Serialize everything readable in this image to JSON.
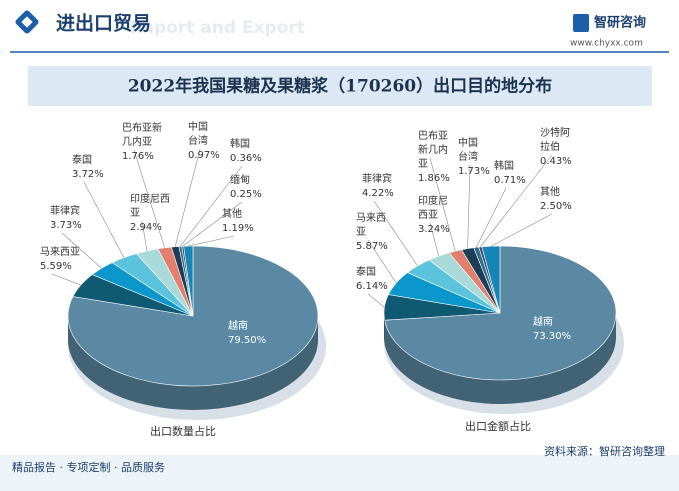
{
  "header": {
    "title": "进出口贸易",
    "subtitle": "Import and Export",
    "brand": "智研咨询",
    "url": "www.chyxx.com"
  },
  "title": "2022年我国果糖及果糖浆（170260）出口目的地分布",
  "chart_data": [
    {
      "type": "pie",
      "title": "出口数量占比",
      "categories": [
        "越南",
        "马来西亚",
        "菲律宾",
        "泰国",
        "印度尼西亚",
        "巴布亚新几内亚",
        "中国台湾",
        "韩国",
        "缅甸",
        "其他"
      ],
      "values": [
        79.5,
        5.59,
        3.73,
        3.72,
        2.94,
        1.76,
        0.97,
        0.36,
        0.25,
        1.19
      ],
      "value_labels": [
        "79.50%",
        "5.59%",
        "3.73%",
        "3.72%",
        "2.94%",
        "1.76%",
        "0.97%",
        "0.36%",
        "0.25%",
        "1.19%"
      ],
      "colors": [
        "#5b88a3",
        "#0f5a72",
        "#0b97cc",
        "#5cc3dd",
        "#a9d9d8",
        "#e2806f",
        "#1e3d57",
        "#2c6f8f",
        "#3b4f66",
        "#1685b8"
      ]
    },
    {
      "type": "pie",
      "title": "出口金额占比",
      "categories": [
        "越南",
        "泰国",
        "马来西亚",
        "菲律宾",
        "印度尼西亚",
        "巴布亚新几内亚",
        "中国台湾",
        "韩国",
        "沙特阿拉伯",
        "其他"
      ],
      "values": [
        73.3,
        6.14,
        5.87,
        4.22,
        3.24,
        1.86,
        1.73,
        0.71,
        0.43,
        2.5
      ],
      "value_labels": [
        "73.30%",
        "6.14%",
        "5.87%",
        "4.22%",
        "3.24%",
        "1.86%",
        "1.73%",
        "0.71%",
        "0.43%",
        "2.50%"
      ],
      "colors": [
        "#5b88a3",
        "#0f5a72",
        "#0b97cc",
        "#5cc3dd",
        "#a9d9d8",
        "#e2806f",
        "#1e3d57",
        "#2c6f8f",
        "#3b4f66",
        "#1685b8"
      ]
    }
  ],
  "footer": {
    "left": "精品报告 · 专项定制 · 品质服务",
    "source": "资料来源：智研咨询整理"
  }
}
